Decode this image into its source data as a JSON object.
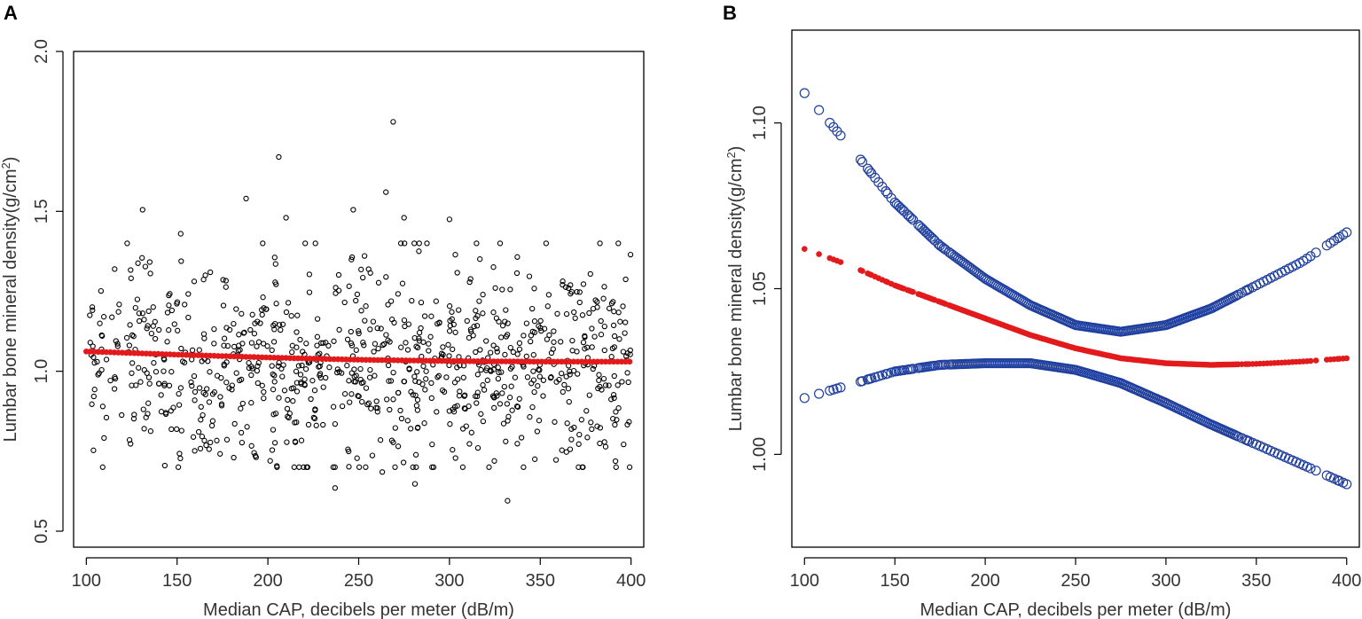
{
  "panels": [
    {
      "label": "A",
      "chart_data": {
        "type": "scatter",
        "title": "",
        "xlabel": "Median CAP, decibels per meter (dB/m)",
        "ylabel_main": "Lumbar bone mineral density(g/cm",
        "ylabel_sup": "2",
        "ylabel_close": ")",
        "xlim": [
          93,
          407
        ],
        "ylim": [
          0.45,
          2.0
        ],
        "xticks": [
          100,
          150,
          200,
          250,
          300,
          350,
          400
        ],
        "yticks": [
          0.5,
          1.0,
          1.5,
          2.0
        ],
        "ytick_labels": [
          "0.5",
          "1.0",
          "1.5",
          "2.0"
        ],
        "fit_color": "#e31a1c",
        "point_color": "#000000",
        "observations_summary": {
          "n_approx": 900,
          "x_range": [
            100,
            400
          ],
          "y_center": 1.03,
          "y_spread_sd": 0.16
        },
        "notable_points": [
          {
            "x": 269,
            "y": 1.78
          },
          {
            "x": 206,
            "y": 1.67
          },
          {
            "x": 265,
            "y": 1.56
          },
          {
            "x": 188,
            "y": 1.54
          },
          {
            "x": 131,
            "y": 1.505
          },
          {
            "x": 247,
            "y": 1.505
          },
          {
            "x": 300,
            "y": 1.475
          },
          {
            "x": 210,
            "y": 1.48
          },
          {
            "x": 275,
            "y": 1.48
          },
          {
            "x": 152,
            "y": 1.43
          },
          {
            "x": 237,
            "y": 0.635
          },
          {
            "x": 281,
            "y": 0.648
          },
          {
            "x": 332,
            "y": 0.595
          },
          {
            "x": 263,
            "y": 0.685
          },
          {
            "x": 347,
            "y": 0.725
          }
        ],
        "series": [
          {
            "name": "fitted",
            "x": [
              100,
              150,
              200,
              250,
              300,
              350,
              400
            ],
            "y": [
              1.062,
              1.052,
              1.043,
              1.036,
              1.032,
              1.03,
              1.03
            ]
          }
        ]
      }
    },
    {
      "label": "B",
      "chart_data": {
        "type": "line",
        "title": "",
        "xlabel": "Median CAP, decibels per meter (dB/m)",
        "ylabel_main": "Lumbar bone mineral density(g/cm",
        "ylabel_sup": "2",
        "ylabel_close": ")",
        "xlim": [
          93,
          407
        ],
        "ylim": [
          0.972,
          1.128
        ],
        "xticks": [
          100,
          150,
          200,
          250,
          300,
          350,
          400
        ],
        "yticks": [
          1.0,
          1.05,
          1.1
        ],
        "ytick_labels": [
          "1.00",
          "1.05",
          "1.10"
        ],
        "ci_color": "#1f3f9e",
        "fit_color": "#e31a1c",
        "series": [
          {
            "name": "upper CI",
            "x": [
              100,
              125,
              150,
              175,
              200,
              225,
              250,
              275,
              300,
              325,
              350,
              375,
              400
            ],
            "y": [
              1.109,
              1.093,
              1.076,
              1.063,
              1.053,
              1.045,
              1.039,
              1.037,
              1.039,
              1.044,
              1.051,
              1.058,
              1.067
            ]
          },
          {
            "name": "fitted",
            "x": [
              100,
              125,
              150,
              175,
              200,
              225,
              250,
              275,
              300,
              325,
              350,
              375,
              400
            ],
            "y": [
              1.062,
              1.057,
              1.051,
              1.046,
              1.041,
              1.036,
              1.032,
              1.029,
              1.0275,
              1.027,
              1.0273,
              1.028,
              1.029
            ]
          },
          {
            "name": "lower CI",
            "x": [
              100,
              125,
              150,
              175,
              200,
              225,
              250,
              275,
              300,
              325,
              350,
              375,
              400
            ],
            "y": [
              1.017,
              1.021,
              1.025,
              1.027,
              1.0275,
              1.0275,
              1.0255,
              1.0215,
              1.0155,
              1.009,
              1.003,
              0.997,
              0.991
            ]
          }
        ],
        "x_density_points": [
          100,
          108,
          114,
          116,
          118,
          120,
          131,
          132,
          135,
          136,
          137,
          139,
          141,
          143,
          145,
          146,
          148,
          150,
          151,
          152,
          153,
          154,
          155,
          157,
          158,
          159,
          160,
          163,
          164,
          165,
          166,
          167,
          168,
          169,
          170,
          171,
          172,
          174,
          175,
          176,
          177,
          178,
          180,
          181,
          182,
          183,
          184,
          185,
          186,
          187,
          188,
          189,
          190,
          191,
          192,
          193,
          194,
          195,
          196,
          197,
          198,
          199,
          200,
          201,
          202,
          203,
          204,
          205,
          206,
          207,
          208,
          209,
          210,
          211,
          212,
          213,
          214,
          215,
          216,
          217,
          218,
          219,
          220,
          221,
          222,
          223,
          224,
          225,
          226,
          227,
          228,
          229,
          230,
          231,
          232,
          233,
          234,
          235,
          236,
          237,
          238,
          239,
          240,
          241,
          242,
          243,
          244,
          245,
          246,
          247,
          248,
          249,
          250,
          251,
          252,
          253,
          254,
          255,
          256,
          257,
          258,
          259,
          260,
          261,
          262,
          263,
          264,
          265,
          266,
          267,
          268,
          269,
          270,
          271,
          272,
          273,
          274,
          275,
          276,
          277,
          278,
          279,
          280,
          281,
          282,
          283,
          284,
          285,
          286,
          287,
          288,
          289,
          290,
          291,
          292,
          293,
          294,
          295,
          296,
          297,
          298,
          299,
          300,
          301,
          302,
          303,
          304,
          305,
          306,
          307,
          308,
          309,
          310,
          311,
          312,
          313,
          314,
          315,
          316,
          317,
          318,
          319,
          320,
          321,
          322,
          323,
          324,
          325,
          326,
          327,
          328,
          329,
          330,
          331,
          332,
          333,
          334,
          335,
          336,
          337,
          338,
          339,
          340,
          342,
          344,
          345,
          346,
          348,
          350,
          352,
          354,
          356,
          358,
          360,
          362,
          364,
          366,
          368,
          370,
          372,
          374,
          376,
          378,
          380,
          383,
          389,
          391,
          393,
          395,
          396,
          398,
          400
        ]
      }
    }
  ]
}
